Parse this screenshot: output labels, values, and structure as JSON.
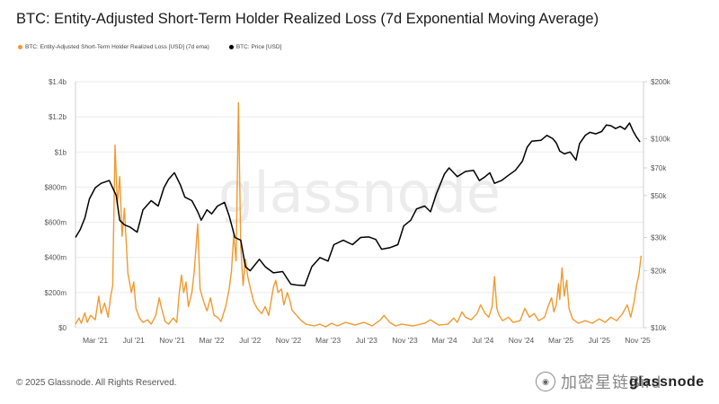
{
  "chart_data": {
    "type": "line",
    "title": "BTC: Entity-Adjusted Short-Term Holder Realized Loss (7d Exponential Moving Average)",
    "legend": [
      {
        "name": "BTC: Entity-Adjusted Short-Term Holder Realized Loss [USD] (7d ema)",
        "color": "#f09a30"
      },
      {
        "name": "BTC: Price [USD]",
        "color": "#000000"
      }
    ],
    "x_range": [
      2021.0,
      2025.88
    ],
    "x_ticks": [
      {
        "label": "Mar '21",
        "t": 2021.17
      },
      {
        "label": "Jul '21",
        "t": 2021.5
      },
      {
        "label": "Nov '21",
        "t": 2021.83
      },
      {
        "label": "Mar '22",
        "t": 2022.17
      },
      {
        "label": "Jul '22",
        "t": 2022.5
      },
      {
        "label": "Nov '22",
        "t": 2022.83
      },
      {
        "label": "Mar '23",
        "t": 2023.17
      },
      {
        "label": "Jul '23",
        "t": 2023.5
      },
      {
        "label": "Nov '23",
        "t": 2023.83
      },
      {
        "label": "Mar '24",
        "t": 2024.17
      },
      {
        "label": "Jul '24",
        "t": 2024.5
      },
      {
        "label": "Nov '24",
        "t": 2024.83
      },
      {
        "label": "Mar '25",
        "t": 2025.17
      },
      {
        "label": "Jul '25",
        "t": 2025.5
      },
      {
        "label": "Nov '25",
        "t": 2025.83
      }
    ],
    "left_axis": {
      "unit": "USD",
      "range": [
        0,
        1400000000
      ],
      "ticks": [
        {
          "label": "$0",
          "v": 0
        },
        {
          "label": "$200m",
          "v": 200000000
        },
        {
          "label": "$400m",
          "v": 400000000
        },
        {
          "label": "$600m",
          "v": 600000000
        },
        {
          "label": "$800m",
          "v": 800000000
        },
        {
          "label": "$1b",
          "v": 1000000000
        },
        {
          "label": "$1.2b",
          "v": 1200000000
        },
        {
          "label": "$1.4b",
          "v": 1400000000
        }
      ]
    },
    "right_axis": {
      "scale": "log",
      "range": [
        10000,
        200000
      ],
      "ticks": [
        {
          "label": "$10k",
          "v": 10000
        },
        {
          "label": "$20k",
          "v": 20000
        },
        {
          "label": "$30k",
          "v": 30000
        },
        {
          "label": "$50k",
          "v": 50000
        },
        {
          "label": "$70k",
          "v": 70000
        },
        {
          "label": "$100k",
          "v": 100000
        },
        {
          "label": "$200k",
          "v": 200000
        }
      ]
    },
    "series": [
      {
        "name": "BTC: Price [USD]",
        "axis": "right",
        "color": "#000000",
        "points": [
          [
            2021.0,
            30000
          ],
          [
            2021.04,
            33000
          ],
          [
            2021.08,
            38000
          ],
          [
            2021.12,
            48000
          ],
          [
            2021.17,
            55000
          ],
          [
            2021.22,
            58000
          ],
          [
            2021.29,
            60000
          ],
          [
            2021.35,
            50000
          ],
          [
            2021.38,
            37000
          ],
          [
            2021.42,
            35000
          ],
          [
            2021.47,
            34000
          ],
          [
            2021.53,
            32000
          ],
          [
            2021.58,
            42000
          ],
          [
            2021.65,
            47000
          ],
          [
            2021.71,
            44000
          ],
          [
            2021.76,
            55000
          ],
          [
            2021.8,
            61000
          ],
          [
            2021.85,
            66000
          ],
          [
            2021.9,
            57000
          ],
          [
            2021.94,
            49000
          ],
          [
            2022.0,
            47000
          ],
          [
            2022.05,
            41000
          ],
          [
            2022.08,
            37000
          ],
          [
            2022.13,
            42000
          ],
          [
            2022.17,
            40000
          ],
          [
            2022.22,
            44000
          ],
          [
            2022.28,
            46000
          ],
          [
            2022.32,
            39000
          ],
          [
            2022.37,
            30000
          ],
          [
            2022.42,
            29000
          ],
          [
            2022.46,
            21000
          ],
          [
            2022.5,
            20000
          ],
          [
            2022.58,
            23000
          ],
          [
            2022.63,
            21000
          ],
          [
            2022.7,
            19500
          ],
          [
            2022.78,
            19800
          ],
          [
            2022.85,
            17000
          ],
          [
            2022.9,
            16800
          ],
          [
            2022.97,
            16700
          ],
          [
            2023.03,
            21000
          ],
          [
            2023.1,
            23500
          ],
          [
            2023.17,
            22500
          ],
          [
            2023.22,
            27500
          ],
          [
            2023.3,
            29000
          ],
          [
            2023.38,
            27500
          ],
          [
            2023.45,
            30000
          ],
          [
            2023.52,
            30200
          ],
          [
            2023.58,
            29300
          ],
          [
            2023.63,
            26000
          ],
          [
            2023.7,
            26500
          ],
          [
            2023.77,
            27500
          ],
          [
            2023.82,
            34500
          ],
          [
            2023.88,
            37000
          ],
          [
            2023.93,
            42500
          ],
          [
            2024.0,
            44000
          ],
          [
            2024.05,
            41000
          ],
          [
            2024.1,
            51000
          ],
          [
            2024.17,
            65000
          ],
          [
            2024.21,
            70000
          ],
          [
            2024.28,
            63000
          ],
          [
            2024.35,
            67000
          ],
          [
            2024.42,
            68000
          ],
          [
            2024.47,
            60000
          ],
          [
            2024.52,
            63000
          ],
          [
            2024.56,
            66000
          ],
          [
            2024.6,
            58000
          ],
          [
            2024.66,
            60000
          ],
          [
            2024.72,
            64000
          ],
          [
            2024.78,
            68000
          ],
          [
            2024.84,
            76000
          ],
          [
            2024.88,
            90000
          ],
          [
            2024.92,
            97000
          ],
          [
            2025.0,
            98000
          ],
          [
            2025.05,
            104000
          ],
          [
            2025.1,
            100000
          ],
          [
            2025.13,
            95000
          ],
          [
            2025.16,
            86000
          ],
          [
            2025.2,
            83000
          ],
          [
            2025.25,
            85000
          ],
          [
            2025.3,
            77000
          ],
          [
            2025.33,
            94000
          ],
          [
            2025.38,
            104000
          ],
          [
            2025.42,
            108000
          ],
          [
            2025.47,
            106000
          ],
          [
            2025.52,
            109000
          ],
          [
            2025.56,
            118000
          ],
          [
            2025.6,
            117000
          ],
          [
            2025.64,
            113000
          ],
          [
            2025.68,
            116000
          ],
          [
            2025.72,
            112000
          ],
          [
            2025.76,
            121000
          ],
          [
            2025.79,
            110000
          ],
          [
            2025.82,
            102000
          ],
          [
            2025.85,
            96000
          ]
        ]
      },
      {
        "name": "BTC: Entity-Adjusted Short-Term Holder Realized Loss [USD] (7d ema)",
        "axis": "left",
        "color": "#f09a30",
        "points": [
          [
            2021.0,
            20000000
          ],
          [
            2021.03,
            55000000
          ],
          [
            2021.05,
            25000000
          ],
          [
            2021.08,
            85000000
          ],
          [
            2021.1,
            30000000
          ],
          [
            2021.13,
            70000000
          ],
          [
            2021.17,
            45000000
          ],
          [
            2021.2,
            180000000
          ],
          [
            2021.22,
            80000000
          ],
          [
            2021.25,
            140000000
          ],
          [
            2021.28,
            60000000
          ],
          [
            2021.3,
            170000000
          ],
          [
            2021.32,
            240000000
          ],
          [
            2021.34,
            1040000000
          ],
          [
            2021.36,
            700000000
          ],
          [
            2021.38,
            860000000
          ],
          [
            2021.4,
            520000000
          ],
          [
            2021.42,
            680000000
          ],
          [
            2021.45,
            310000000
          ],
          [
            2021.48,
            200000000
          ],
          [
            2021.5,
            260000000
          ],
          [
            2021.52,
            110000000
          ],
          [
            2021.55,
            55000000
          ],
          [
            2021.58,
            30000000
          ],
          [
            2021.62,
            45000000
          ],
          [
            2021.65,
            20000000
          ],
          [
            2021.69,
            70000000
          ],
          [
            2021.72,
            170000000
          ],
          [
            2021.74,
            110000000
          ],
          [
            2021.77,
            35000000
          ],
          [
            2021.8,
            20000000
          ],
          [
            2021.84,
            55000000
          ],
          [
            2021.87,
            30000000
          ],
          [
            2021.89,
            190000000
          ],
          [
            2021.91,
            300000000
          ],
          [
            2021.93,
            200000000
          ],
          [
            2021.95,
            260000000
          ],
          [
            2021.97,
            120000000
          ],
          [
            2022.0,
            200000000
          ],
          [
            2022.02,
            320000000
          ],
          [
            2022.05,
            590000000
          ],
          [
            2022.07,
            220000000
          ],
          [
            2022.1,
            150000000
          ],
          [
            2022.13,
            95000000
          ],
          [
            2022.16,
            170000000
          ],
          [
            2022.19,
            70000000
          ],
          [
            2022.22,
            60000000
          ],
          [
            2022.25,
            35000000
          ],
          [
            2022.29,
            120000000
          ],
          [
            2022.32,
            220000000
          ],
          [
            2022.34,
            320000000
          ],
          [
            2022.36,
            530000000
          ],
          [
            2022.38,
            380000000
          ],
          [
            2022.4,
            1280000000
          ],
          [
            2022.42,
            460000000
          ],
          [
            2022.44,
            240000000
          ],
          [
            2022.46,
            390000000
          ],
          [
            2022.48,
            290000000
          ],
          [
            2022.5,
            230000000
          ],
          [
            2022.53,
            150000000
          ],
          [
            2022.56,
            110000000
          ],
          [
            2022.6,
            80000000
          ],
          [
            2022.63,
            120000000
          ],
          [
            2022.66,
            70000000
          ],
          [
            2022.7,
            230000000
          ],
          [
            2022.72,
            270000000
          ],
          [
            2022.74,
            200000000
          ],
          [
            2022.77,
            220000000
          ],
          [
            2022.79,
            130000000
          ],
          [
            2022.82,
            200000000
          ],
          [
            2022.84,
            160000000
          ],
          [
            2022.86,
            100000000
          ],
          [
            2022.9,
            70000000
          ],
          [
            2022.94,
            40000000
          ],
          [
            2022.98,
            20000000
          ],
          [
            2023.05,
            10000000
          ],
          [
            2023.1,
            20000000
          ],
          [
            2023.15,
            5000000
          ],
          [
            2023.2,
            25000000
          ],
          [
            2023.25,
            10000000
          ],
          [
            2023.32,
            30000000
          ],
          [
            2023.4,
            15000000
          ],
          [
            2023.48,
            30000000
          ],
          [
            2023.55,
            10000000
          ],
          [
            2023.62,
            45000000
          ],
          [
            2023.65,
            70000000
          ],
          [
            2023.7,
            30000000
          ],
          [
            2023.75,
            10000000
          ],
          [
            2023.8,
            20000000
          ],
          [
            2023.9,
            10000000
          ],
          [
            2024.0,
            25000000
          ],
          [
            2024.05,
            45000000
          ],
          [
            2024.12,
            15000000
          ],
          [
            2024.2,
            20000000
          ],
          [
            2024.25,
            55000000
          ],
          [
            2024.28,
            30000000
          ],
          [
            2024.32,
            90000000
          ],
          [
            2024.35,
            60000000
          ],
          [
            2024.4,
            45000000
          ],
          [
            2024.45,
            80000000
          ],
          [
            2024.48,
            130000000
          ],
          [
            2024.52,
            80000000
          ],
          [
            2024.55,
            60000000
          ],
          [
            2024.58,
            120000000
          ],
          [
            2024.6,
            290000000
          ],
          [
            2024.62,
            110000000
          ],
          [
            2024.64,
            70000000
          ],
          [
            2024.67,
            40000000
          ],
          [
            2024.72,
            60000000
          ],
          [
            2024.76,
            30000000
          ],
          [
            2024.82,
            40000000
          ],
          [
            2024.86,
            110000000
          ],
          [
            2024.9,
            60000000
          ],
          [
            2024.94,
            80000000
          ],
          [
            2024.98,
            40000000
          ],
          [
            2025.03,
            60000000
          ],
          [
            2025.06,
            120000000
          ],
          [
            2025.09,
            170000000
          ],
          [
            2025.11,
            90000000
          ],
          [
            2025.13,
            130000000
          ],
          [
            2025.15,
            250000000
          ],
          [
            2025.16,
            160000000
          ],
          [
            2025.18,
            340000000
          ],
          [
            2025.2,
            180000000
          ],
          [
            2025.22,
            270000000
          ],
          [
            2025.24,
            110000000
          ],
          [
            2025.27,
            50000000
          ],
          [
            2025.32,
            25000000
          ],
          [
            2025.38,
            40000000
          ],
          [
            2025.44,
            25000000
          ],
          [
            2025.5,
            50000000
          ],
          [
            2025.55,
            30000000
          ],
          [
            2025.6,
            60000000
          ],
          [
            2025.65,
            40000000
          ],
          [
            2025.7,
            80000000
          ],
          [
            2025.74,
            130000000
          ],
          [
            2025.77,
            60000000
          ],
          [
            2025.8,
            150000000
          ],
          [
            2025.82,
            240000000
          ],
          [
            2025.84,
            300000000
          ],
          [
            2025.86,
            410000000
          ]
        ]
      }
    ]
  },
  "footer": {
    "copyright": "© 2025 Glassnode. All Rights Reserved.",
    "brand": "glassnode"
  },
  "chart_watermark": "glassnode",
  "source_watermark": "加密星链Bird"
}
